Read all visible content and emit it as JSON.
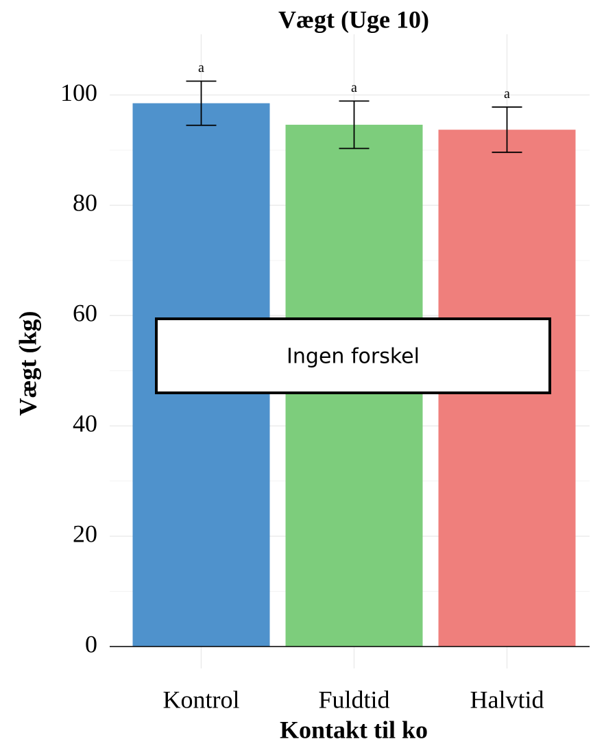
{
  "chart_data": {
    "type": "bar",
    "title": "Vægt (Uge 10)",
    "x_label": "Kontakt til ko",
    "y_label": "Vægt (kg)",
    "categories": [
      "Kontrol",
      "Fuldtid",
      "Halvtid"
    ],
    "values": [
      98.5,
      94.6,
      93.7
    ],
    "errors": [
      4.0,
      4.3,
      4.1
    ],
    "group_letters": [
      "a",
      "a",
      "a"
    ],
    "colors": [
      "#4f92cc",
      "#7dcd7c",
      "#ef7f7c"
    ],
    "annotation": "Ingen forskel",
    "ylim": [
      0,
      111
    ],
    "yticks": [
      0,
      20,
      40,
      60,
      80,
      100
    ],
    "grid": true,
    "minor_grid": true
  }
}
